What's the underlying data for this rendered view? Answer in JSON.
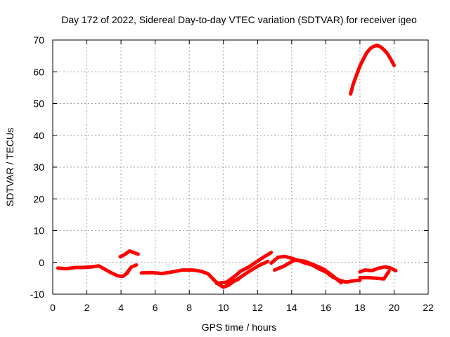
{
  "chart_data": {
    "type": "line",
    "title": "Day 172 of 2022, Sidereal Day-to-day VTEC variation (SDTVAR) for receiver igeo",
    "xlabel": "GPS time / hours",
    "ylabel": "SDTVAR / TECUs",
    "xlim": [
      0,
      22
    ],
    "ylim": [
      -10,
      70
    ],
    "xticks": [
      0,
      2,
      4,
      6,
      8,
      10,
      12,
      14,
      16,
      18,
      20,
      22
    ],
    "yticks": [
      -10,
      0,
      10,
      20,
      30,
      40,
      50,
      60,
      70
    ],
    "grid": true,
    "color": "#ff0000",
    "series": [
      {
        "name": "seg-1",
        "x": [
          0.3,
          0.8,
          1.3,
          1.8,
          2.3,
          2.7,
          3.0,
          3.4,
          3.8,
          4.1,
          4.4
        ],
        "y": [
          -1.8,
          -2.0,
          -1.6,
          -1.6,
          -1.4,
          -1.1,
          -2.0,
          -3.2,
          -4.2,
          -4.4,
          -3.2
        ]
      },
      {
        "name": "seg-2",
        "x": [
          3.95,
          4.2,
          4.5,
          4.8,
          5.0
        ],
        "y": [
          1.8,
          2.4,
          3.6,
          3.0,
          2.6
        ]
      },
      {
        "name": "seg-3",
        "x": [
          4.3,
          4.6,
          4.9
        ],
        "y": [
          -3.6,
          -1.5,
          -0.8
        ]
      },
      {
        "name": "seg-4",
        "x": [
          5.2,
          5.8,
          6.4,
          7.0,
          7.6,
          8.2,
          8.7,
          9.1,
          9.5,
          9.8,
          10.0,
          10.3,
          10.6,
          10.9
        ],
        "y": [
          -3.3,
          -3.2,
          -3.5,
          -3.0,
          -2.4,
          -2.4,
          -2.8,
          -3.6,
          -5.8,
          -7.2,
          -7.8,
          -7.2,
          -6.0,
          -5.2
        ]
      },
      {
        "name": "seg-5",
        "x": [
          9.6,
          10.2,
          10.7,
          11.0,
          11.5,
          12.0,
          12.4,
          12.8
        ],
        "y": [
          -6.6,
          -6.2,
          -4.2,
          -2.8,
          -1.4,
          0.4,
          1.8,
          3.1
        ]
      },
      {
        "name": "seg-6",
        "x": [
          10.2,
          10.8,
          11.4,
          12.0,
          12.6
        ],
        "y": [
          -6.8,
          -5.4,
          -3.2,
          -1.2,
          0.3
        ]
      },
      {
        "name": "seg-7",
        "x": [
          12.8,
          13.2,
          13.6,
          14.0,
          14.4,
          14.8,
          15.2,
          15.6,
          16.0,
          16.4,
          16.8,
          17.2,
          17.6,
          18.0
        ],
        "y": [
          -0.2,
          1.6,
          1.9,
          1.3,
          0.6,
          -0.2,
          -0.8,
          -2.0,
          -3.0,
          -4.6,
          -5.6,
          -6.2,
          -5.8,
          -5.6
        ]
      },
      {
        "name": "seg-8",
        "x": [
          13.0,
          13.5,
          14.2,
          14.8,
          15.4,
          15.9,
          16.4,
          16.9
        ],
        "y": [
          -2.4,
          -1.3,
          0.8,
          0.3,
          -1.0,
          -2.2,
          -4.2,
          -6.4
        ]
      },
      {
        "name": "seg-9",
        "x": [
          18.0,
          18.3,
          18.7,
          19.1,
          19.5,
          19.8,
          20.1
        ],
        "y": [
          -3.0,
          -2.4,
          -2.6,
          -1.8,
          -1.4,
          -1.8,
          -2.6
        ]
      },
      {
        "name": "seg-10",
        "x": [
          18.0,
          18.5,
          19.0,
          19.4,
          19.7
        ],
        "y": [
          -4.8,
          -4.8,
          -5.0,
          -5.2,
          -2.8
        ]
      },
      {
        "name": "seg-11",
        "x": [
          17.45,
          17.6,
          17.8,
          18.0,
          18.2,
          18.4,
          18.6,
          18.8,
          19.0,
          19.2,
          19.4,
          19.6,
          19.8,
          20.0
        ],
        "y": [
          53.0,
          56.0,
          59.0,
          61.8,
          64.0,
          66.0,
          67.3,
          68.0,
          68.3,
          67.9,
          67.0,
          65.8,
          64.0,
          62.0
        ]
      }
    ]
  }
}
